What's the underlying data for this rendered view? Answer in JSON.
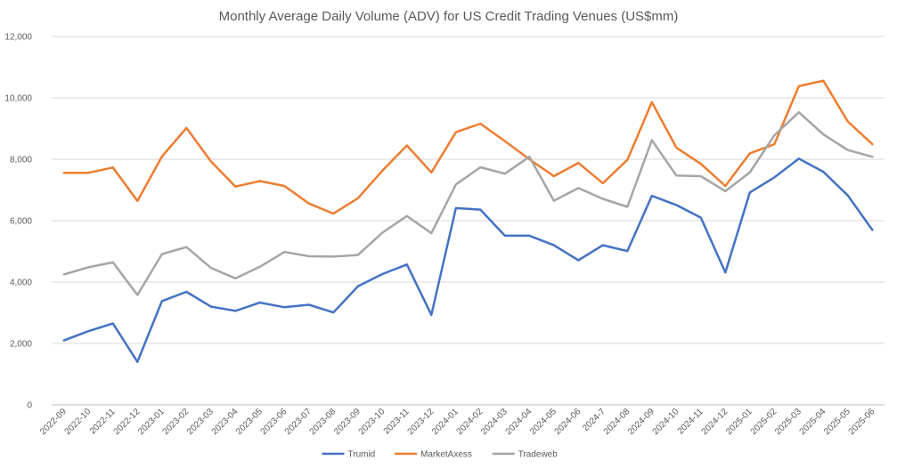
{
  "chart_data": {
    "type": "line",
    "title": "Monthly Average Daily Volume (ADV) for US Credit Trading Venues (US$mm)",
    "xlabel": "",
    "ylabel": "",
    "ylim": [
      0,
      12000
    ],
    "yticks": [
      0,
      2000,
      4000,
      6000,
      8000,
      10000,
      12000
    ],
    "ytick_labels": [
      "0",
      "2,000",
      "4,000",
      "6,000",
      "8,000",
      "10,000",
      "12,000"
    ],
    "grid": true,
    "legend_position": "bottom",
    "categories": [
      "2022-09",
      "2022-10",
      "2022-11",
      "2022-12",
      "2023-01",
      "2023-02",
      "2023-03",
      "2023-04",
      "2023-05",
      "2023-06",
      "2023-07",
      "2023-08",
      "2023-09",
      "2023-10",
      "2023-11",
      "2023-12",
      "2024-01",
      "2024-02",
      "2024-03",
      "2024-04",
      "2024-05",
      "2024-06",
      "2024-7",
      "2024-08",
      "2024-09",
      "2024-10",
      "2024-11",
      "2024-12",
      "2025-01",
      "2025-02",
      "2025-03",
      "2025-04",
      "2025-05",
      "2025-06"
    ],
    "series": [
      {
        "name": "Trumid",
        "color": "#4472c4",
        "values": [
          2100,
          2400,
          2650,
          1400,
          3380,
          3680,
          3200,
          3060,
          3330,
          3180,
          3260,
          3010,
          3860,
          4260,
          4570,
          2930,
          6410,
          6360,
          5510,
          5510,
          5200,
          4710,
          5200,
          5010,
          6810,
          6510,
          6100,
          4310,
          6920,
          7410,
          8020,
          7590,
          6820,
          5700
        ]
      },
      {
        "name": "MarketAxess",
        "color": "#ed7d31",
        "values": [
          7560,
          7560,
          7730,
          6640,
          8090,
          9020,
          7930,
          7110,
          7290,
          7130,
          6560,
          6230,
          6730,
          7630,
          8450,
          7570,
          8880,
          9160,
          8590,
          8000,
          7450,
          7880,
          7220,
          7980,
          9860,
          8380,
          7850,
          7130,
          8190,
          8490,
          10380,
          10560,
          9230,
          8490
        ]
      },
      {
        "name": "Tradeweb",
        "color": "#a5a5a5",
        "values": [
          4250,
          4480,
          4640,
          3580,
          4910,
          5140,
          4460,
          4120,
          4500,
          4980,
          4840,
          4830,
          4880,
          5610,
          6150,
          5590,
          7180,
          7740,
          7530,
          8080,
          6650,
          7060,
          6710,
          6450,
          8620,
          7470,
          7450,
          6960,
          7570,
          8780,
          9530,
          8810,
          8300,
          8080
        ]
      }
    ]
  }
}
